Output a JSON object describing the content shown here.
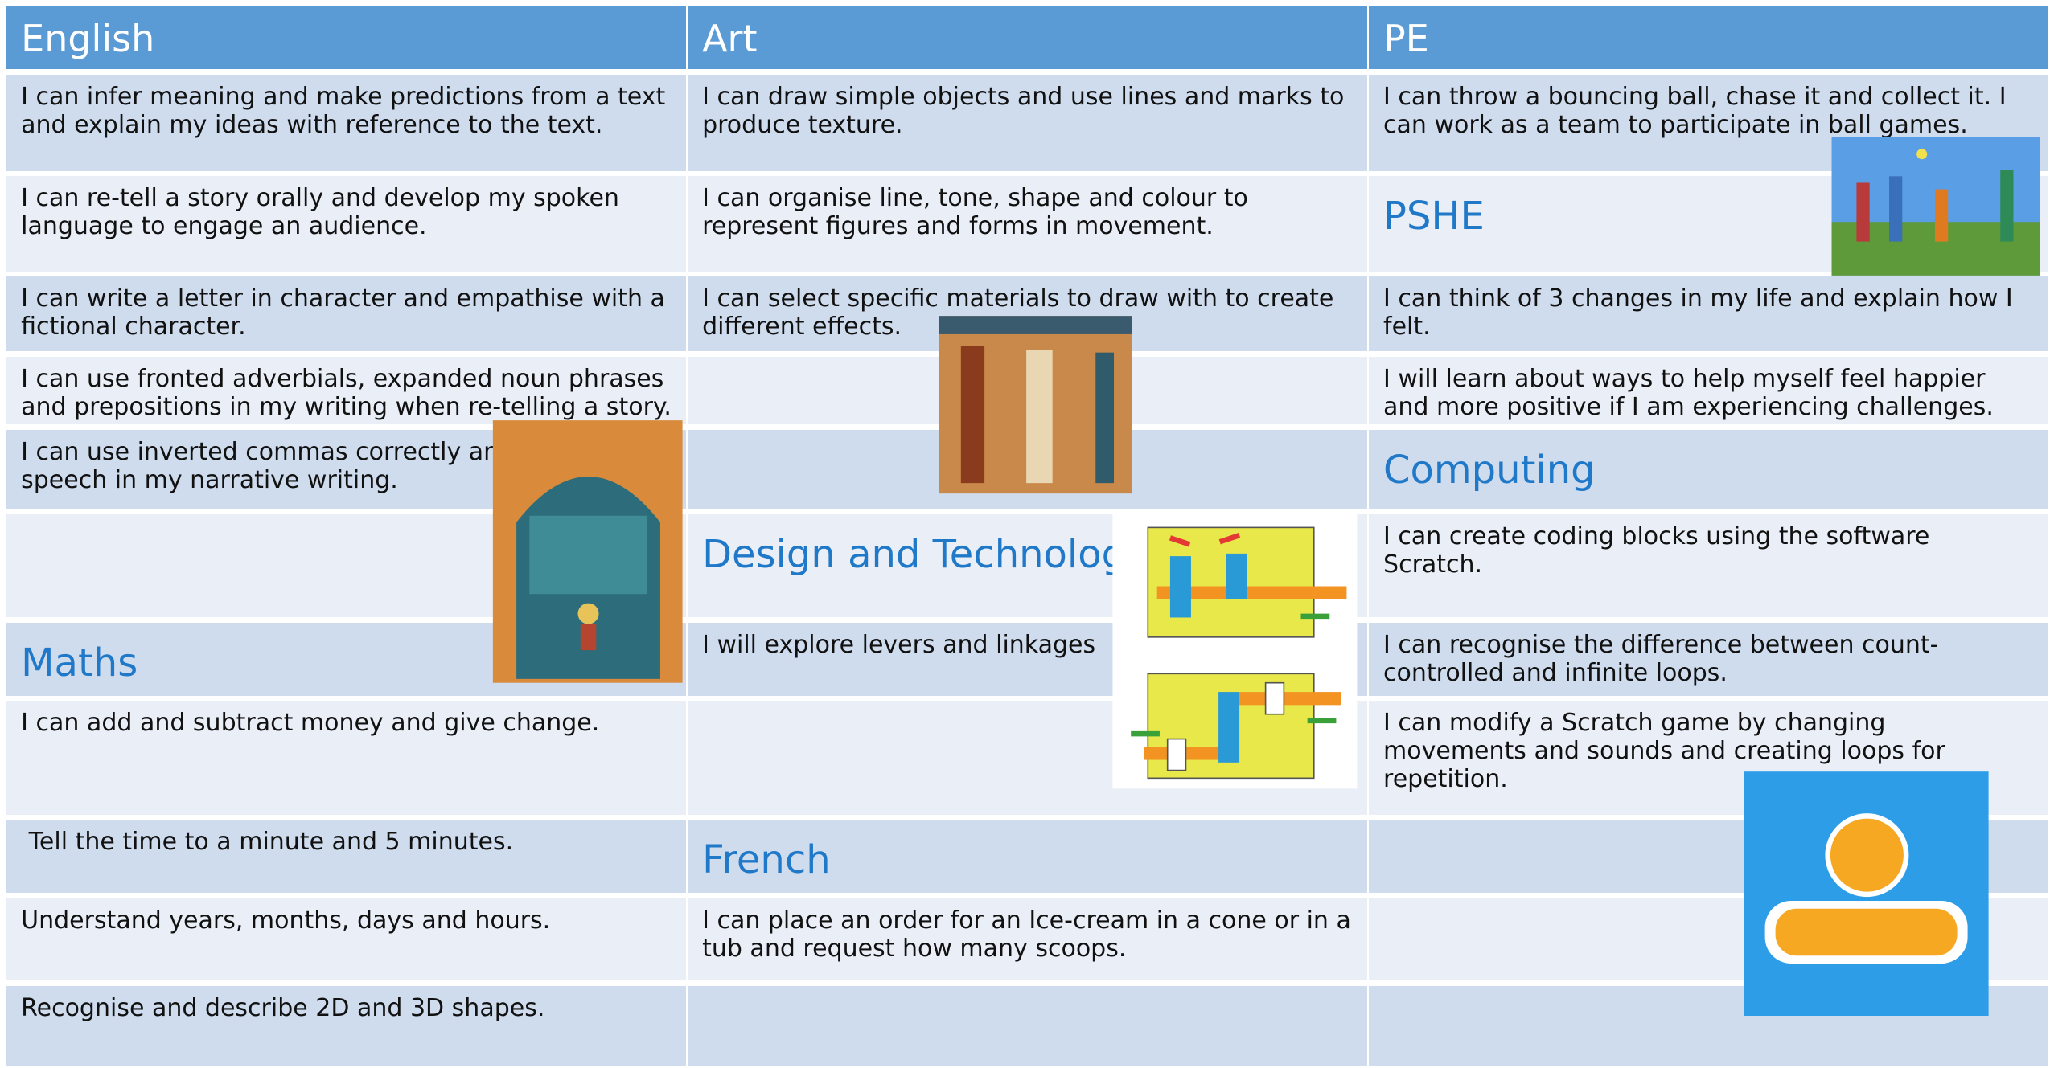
{
  "table": {
    "header": [
      "English",
      "Art",
      "PE"
    ],
    "rows": [
      [
        {
          "text": "I can infer meaning and make predictions from a text and explain my ideas with reference to the text."
        },
        {
          "text": "I can draw simple objects and use lines and marks to produce texture."
        },
        {
          "text": "I can throw a bouncing ball, chase it and collect it. I can work as a team to participate in ball games."
        }
      ],
      [
        {
          "text": "I can re-tell a story orally and develop my spoken language to engage an audience."
        },
        {
          "text": "I can organise line, tone, shape and colour to represent figures and forms in movement."
        },
        {
          "heading": "PSHE"
        }
      ],
      [
        {
          "text": "I can write a letter in character and empathise with a fictional character."
        },
        {
          "text": "I can select specific materials to draw with to create different effects."
        },
        {
          "text": "I can think of 3 changes in my life and explain how I felt."
        }
      ],
      [
        {
          "text": "I can use fronted adverbials, expanded noun phrases and prepositions in my writing when re-telling a story."
        },
        null,
        {
          "text": "I will learn about ways to help myself feel happier and more positive if I am experiencing challenges."
        }
      ],
      [
        {
          "text": "I can use inverted commas correctly and direct speech in my narrative writing."
        },
        null,
        {
          "heading": "Computing"
        }
      ],
      [
        null,
        {
          "heading": "Design and Technology"
        },
        {
          "text": "I can create coding blocks using the software Scratch."
        }
      ],
      [
        {
          "heading": "Maths"
        },
        {
          "text": "I will explore levers and linkages"
        },
        {
          "text": "I can recognise the difference between count-controlled and infinite loops."
        }
      ],
      [
        {
          "text": "I can add and subtract money and give change."
        },
        null,
        {
          "text": "I can modify a Scratch game by changing movements and sounds and creating loops for repetition."
        }
      ],
      [
        {
          "text": " Tell the time to a minute and 5 minutes."
        },
        {
          "heading": "French"
        },
        null
      ],
      [
        {
          "text": "Understand years, months, days and hours."
        },
        {
          "text": "I can place an order for an Ice-cream in a cone or in a tub and request how many scoops."
        },
        null
      ],
      [
        {
          "text": "Recognise and describe 2D and 3D shapes."
        },
        null,
        null
      ]
    ]
  }
}
